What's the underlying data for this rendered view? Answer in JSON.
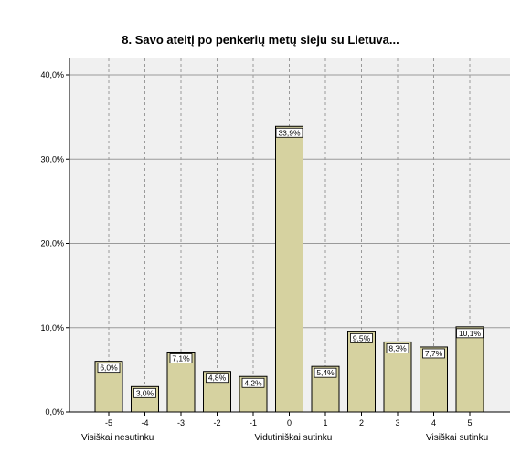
{
  "chart_data": {
    "type": "bar",
    "title": "8. Savo ateitį po penkerių metų sieju su Lietuva...",
    "categories": [
      "-5",
      "-4",
      "-3",
      "-2",
      "-1",
      "0",
      "1",
      "2",
      "3",
      "4",
      "5"
    ],
    "values": [
      6.0,
      3.0,
      7.1,
      4.8,
      4.2,
      33.9,
      5.4,
      9.5,
      8.3,
      7.7,
      10.1
    ],
    "data_labels": [
      "6,0%",
      "3,0%",
      "7,1%",
      "4,8%",
      "4,2%",
      "33,9%",
      "5,4%",
      "9,5%",
      "8,3%",
      "7,7%",
      "10,1%"
    ],
    "yticks": [
      0,
      10,
      20,
      30,
      40
    ],
    "ytick_labels": [
      "0,0%",
      "10,0%",
      "20,0%",
      "30,0%",
      "40,0%"
    ],
    "ylim": [
      0,
      40
    ],
    "xlabel": "",
    "ylabel": "",
    "grid": true,
    "scale_anchors": {
      "left": "Visiškai nesutinku",
      "middle": "Vidutiniškai sutinku",
      "right": "Visiškai sutinku"
    },
    "colors": {
      "bar_fill": "#d6d2a0",
      "bar_stroke": "#000000",
      "plot_background": "#f0f0f0",
      "grid": "#9a9a9a"
    }
  }
}
